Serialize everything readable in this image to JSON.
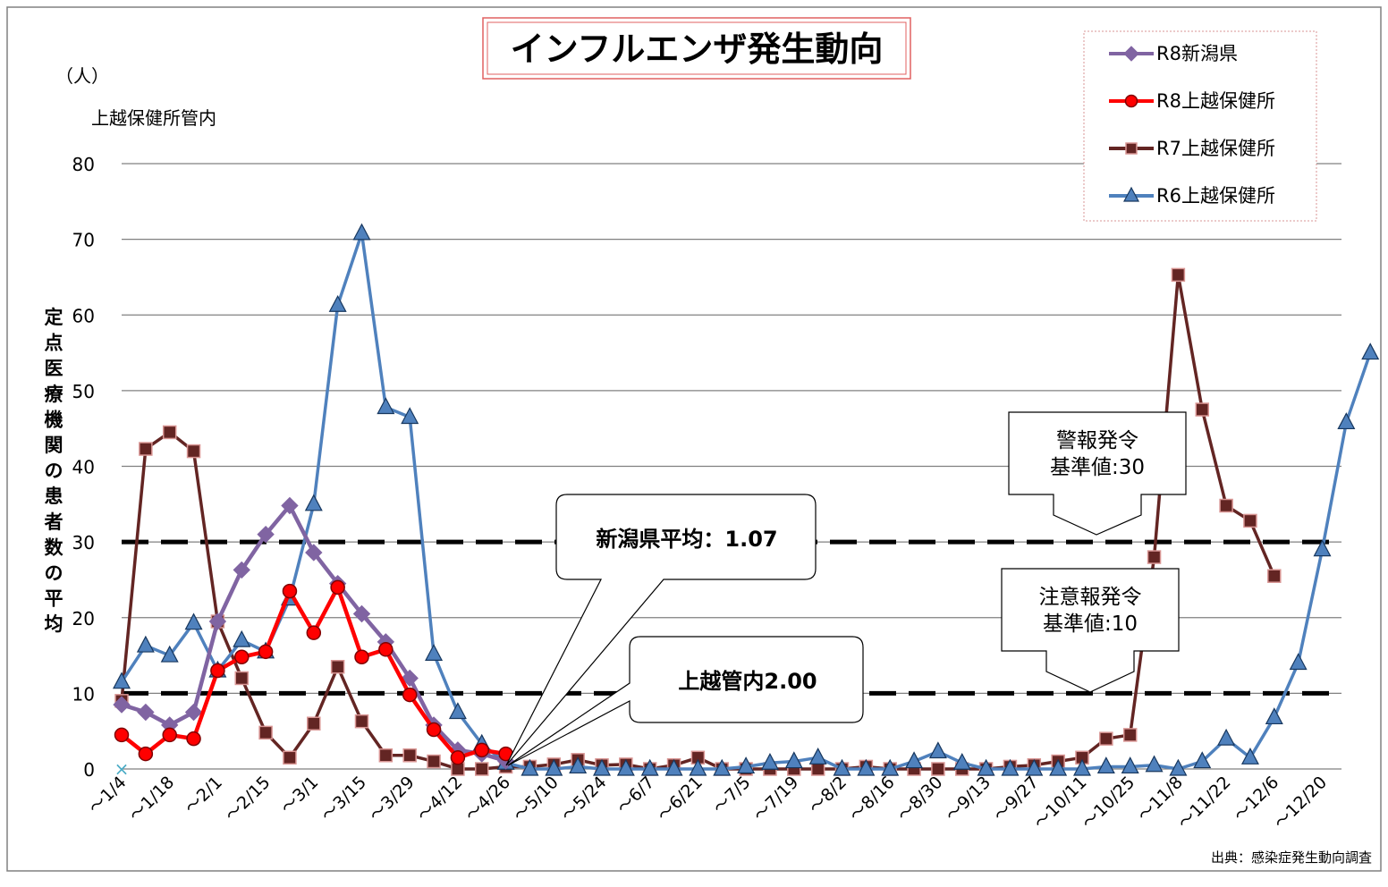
{
  "chart_data": {
    "type": "line",
    "title": "インフルエンザ発生動向",
    "unit_label": "（人）",
    "area_label": "上越保健所管内",
    "ylabel": "定点医療機関の患者数の平均",
    "source": "出典：感染症発生動向調査",
    "ylim": [
      0,
      80
    ],
    "yticks": [
      0,
      10,
      20,
      30,
      40,
      50,
      60,
      70,
      80
    ],
    "grid": true,
    "legend_position": "top-right",
    "x_tick_labels": [
      "～1/4",
      "～1/18",
      "～2/1",
      "～2/15",
      "～3/1",
      "～3/15",
      "～3/29",
      "～4/12",
      "～4/26",
      "～5/10",
      "～5/24",
      "～6/7",
      "～6/21",
      "～7/5",
      "～7/19",
      "～8/2",
      "～8/16",
      "～8/30",
      "～9/13",
      "～9/27",
      "～10/11",
      "～10/25",
      "～11/8",
      "～11/22",
      "～12/6",
      "～12/20"
    ],
    "series": [
      {
        "name": "R8新潟県",
        "color": "#8064a2",
        "marker": "diamond",
        "values": [
          8.5,
          7.5,
          5.8,
          7.5,
          19.5,
          26.3,
          31.0,
          34.8,
          28.6,
          24.5,
          20.5,
          16.8,
          12.0,
          5.8,
          2.5,
          2.0,
          1.07
        ]
      },
      {
        "name": "R8上越保健所",
        "color": "#ff0000",
        "marker": "circle",
        "values": [
          4.5,
          2.0,
          4.5,
          4.0,
          13.0,
          14.8,
          15.5,
          23.5,
          18.0,
          24.0,
          14.8,
          15.8,
          9.8,
          5.2,
          1.5,
          2.5,
          2.0
        ]
      },
      {
        "name": "R7上越保健所",
        "color": "#632523",
        "marker": "square",
        "values": [
          9.0,
          42.3,
          44.5,
          42.0,
          19.5,
          12.0,
          4.8,
          1.5,
          6.0,
          13.5,
          6.3,
          1.8,
          1.8,
          1.0,
          0,
          0,
          0.3,
          0.3,
          0.6,
          1.2,
          0.5,
          0.6,
          0,
          0.5,
          1.5,
          0,
          0,
          0,
          0,
          0,
          0,
          0.3,
          0,
          0,
          0,
          0,
          0,
          0.3,
          0.5,
          1.0,
          1.5,
          4.0,
          4.5,
          28.0,
          65.3,
          47.5,
          34.8,
          32.8,
          25.5
        ]
      },
      {
        "name": "R6上越保健所",
        "color": "#4f81bd",
        "marker": "triangle",
        "values": [
          11.5,
          16.3,
          15.0,
          19.3,
          13.0,
          17.0,
          15.5,
          22.5,
          35.0,
          61.3,
          70.8,
          47.8,
          46.5,
          15.2,
          7.5,
          3.3,
          0.8,
          0,
          0,
          0.3,
          0,
          0,
          0,
          0,
          0,
          0,
          0.3,
          0.8,
          1.0,
          1.5,
          0,
          0,
          0,
          1.0,
          2.3,
          0.8,
          0,
          0,
          0,
          0,
          0,
          0.3,
          0.3,
          0.5,
          0,
          1.0,
          4.0,
          1.5,
          6.8,
          14.0,
          29.0,
          45.8,
          55.0
        ]
      }
    ],
    "reference_lines": [
      {
        "value": 30,
        "label_line1": "警報発令",
        "label_line2": "基準値:30"
      },
      {
        "value": 10,
        "label_line1": "注意報発令",
        "label_line2": "基準値:10"
      }
    ],
    "callouts": [
      {
        "text": "新潟県平均：1.07"
      },
      {
        "text": "上越管内2.00"
      }
    ],
    "first_point_marker": "×"
  }
}
